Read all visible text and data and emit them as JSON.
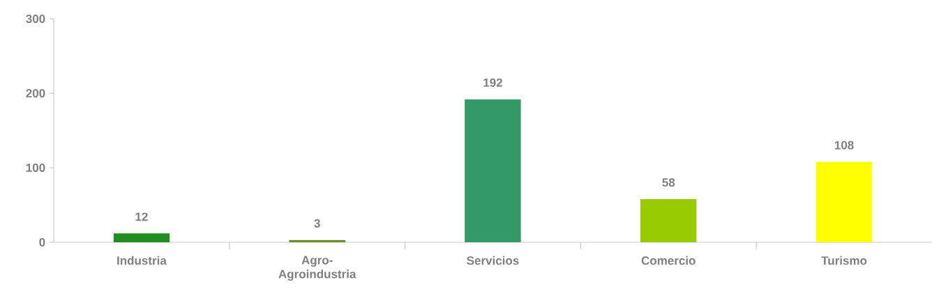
{
  "chart_data": {
    "type": "bar",
    "categories": [
      "Industria",
      "Agro-Agroindustria",
      "Servicios",
      "Comercio",
      "Turismo"
    ],
    "values": [
      12,
      3,
      192,
      58,
      108
    ],
    "colors": [
      "#228b22",
      "#6b8e23",
      "#339966",
      "#99cc00",
      "#ffff00"
    ],
    "ylim": [
      0,
      300
    ],
    "yticks": [
      0,
      100,
      200,
      300
    ],
    "data_labels": true,
    "grid": false
  }
}
